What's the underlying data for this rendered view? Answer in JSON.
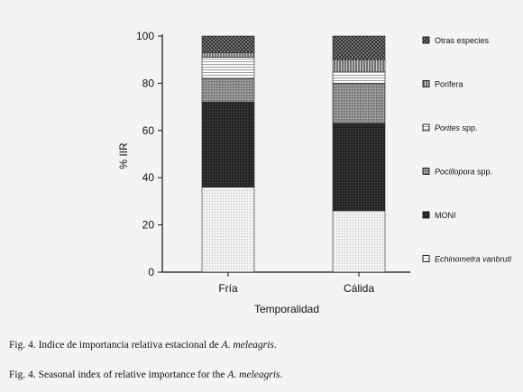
{
  "chart_data": {
    "type": "bar",
    "stacked": true,
    "categories": [
      "Fría",
      "Cálida"
    ],
    "xlabel": "Temporalidad",
    "ylabel": "% IIR",
    "ylim": [
      0,
      100
    ],
    "yticks": [
      0,
      20,
      40,
      60,
      80,
      100
    ],
    "legend_position": "right",
    "series": [
      {
        "name": "Echinometra vanbruti",
        "name_style": "italic",
        "values": [
          36,
          26
        ],
        "fill": "#eeeeec",
        "pattern": "dots-fine"
      },
      {
        "name": "MONI",
        "name_style": "normal",
        "values": [
          36,
          37
        ],
        "fill": "#2b2b2b",
        "pattern": "dark-dots"
      },
      {
        "name_parts": [
          {
            "text": "Pocillopora",
            "italic": true
          },
          {
            "text": " spp.",
            "italic": false
          }
        ],
        "values": [
          10,
          17
        ],
        "fill": "#8a8a8c",
        "pattern": "grey-dots"
      },
      {
        "name_parts": [
          {
            "text": "Porites",
            "italic": true
          },
          {
            "text": " spp.",
            "italic": false
          }
        ],
        "values": [
          9,
          5
        ],
        "fill": "#f6f6f6",
        "pattern": "h-stripes"
      },
      {
        "name": "Porifera",
        "name_style": "normal",
        "values": [
          2,
          5
        ],
        "fill": "#7c7c7e",
        "pattern": "v-stripes"
      },
      {
        "name": "Otras especies",
        "name_style": "normal",
        "values": [
          7,
          10
        ],
        "fill": "#3a3a3a",
        "pattern": "checker"
      }
    ]
  },
  "captions": [
    {
      "prefix": "Fig. 4. Indice de importancia relativa estacional de ",
      "species": "A. meleagris",
      "suffix": "."
    },
    {
      "prefix": "Fig. 4. Seasonal index of relative importance for the ",
      "species": "A. meleagris",
      "suffix": "."
    }
  ]
}
